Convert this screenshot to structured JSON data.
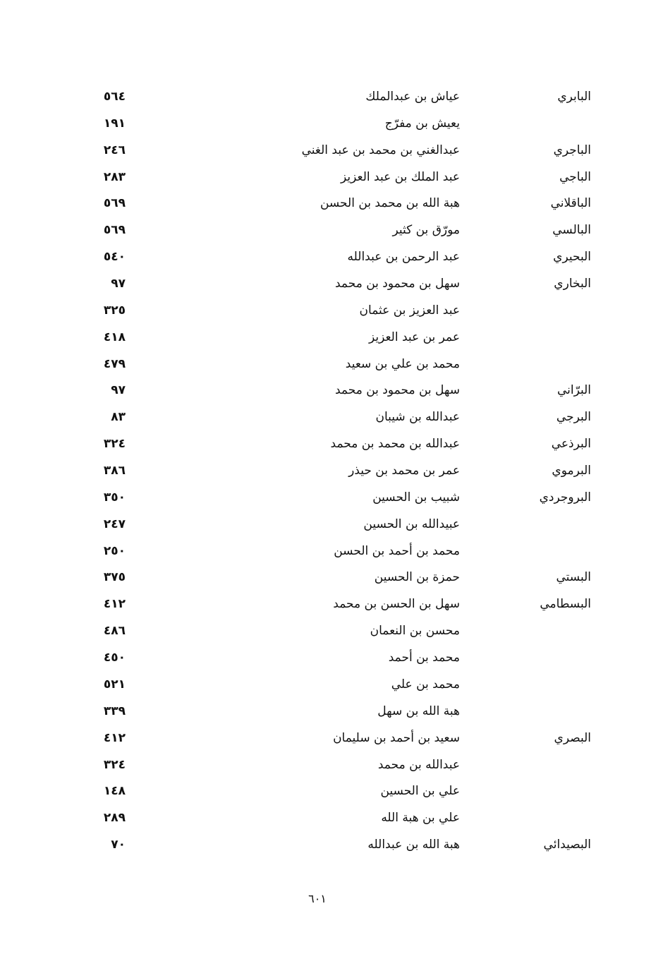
{
  "entries": [
    {
      "nisba": "البابري",
      "name": "عياش بن عبدالملك",
      "page": "٥٦٤"
    },
    {
      "nisba": "",
      "name": "يعيش بن مفرّج",
      "page": "١٩١"
    },
    {
      "nisba": "الباجري",
      "name": "عبدالغني بن محمد بن عبد الغني",
      "page": "٢٤٦"
    },
    {
      "nisba": "الباجي",
      "name": "عبد الملك بن عبد العزيز",
      "page": "٢٨٣"
    },
    {
      "nisba": "الباقلاني",
      "name": "هبة الله بن محمد بن الحسن",
      "page": "٥٦٩"
    },
    {
      "nisba": "البالسي",
      "name": "مورّق بن كثير",
      "page": "٥٦٩"
    },
    {
      "nisba": "البحيري",
      "name": "عبد الرحمن بن عبدالله",
      "page": "٥٤٠"
    },
    {
      "nisba": "البخاري",
      "name": "سهل بن محمود بن محمد",
      "page": "٩٧"
    },
    {
      "nisba": "",
      "name": "عبد العزيز بن عثمان",
      "page": "٣٢٥"
    },
    {
      "nisba": "",
      "name": "عمر بن عبد العزيز",
      "page": "٤١٨"
    },
    {
      "nisba": "",
      "name": "محمد بن علي بن سعيد",
      "page": "٤٧٩"
    },
    {
      "nisba": "البرّاني",
      "name": "سهل بن محمود بن محمد",
      "page": "٩٧"
    },
    {
      "nisba": "البرجي",
      "name": "عبدالله بن شيبان",
      "page": "٨٣"
    },
    {
      "nisba": "البرذعي",
      "name": "عبدالله بن محمد بن محمد",
      "page": "٣٢٤"
    },
    {
      "nisba": "البرموي",
      "name": "عمر بن محمد بن حيذر",
      "page": "٣٨٦"
    },
    {
      "nisba": "البروجردي",
      "name": "شبيب بن الحسين",
      "page": "٣٥٠"
    },
    {
      "nisba": "",
      "name": "عبيدالله بن الحسين",
      "page": "٢٤٧"
    },
    {
      "nisba": "",
      "name": "محمد بن أحمد بن الحسن",
      "page": "٢٥٠"
    },
    {
      "nisba": "البستي",
      "name": "حمزة بن الحسين",
      "page": "٣٧٥"
    },
    {
      "nisba": "البسطامي",
      "name": "سهل بن الحسن بن محمد",
      "page": "٤١٢"
    },
    {
      "nisba": "",
      "name": "محسن بن النعمان",
      "page": "٤٨٦"
    },
    {
      "nisba": "",
      "name": "محمد بن أحمد",
      "page": "٤٥٠"
    },
    {
      "nisba": "",
      "name": "محمد بن علي",
      "page": "٥٢١"
    },
    {
      "nisba": "",
      "name": "هبة الله بن سهل",
      "page": "٣٣٩"
    },
    {
      "nisba": "البصري",
      "name": "سعيد بن أحمد بن سليمان",
      "page": "٤١٢"
    },
    {
      "nisba": "",
      "name": "عبدالله بن محمد",
      "page": "٣٢٤"
    },
    {
      "nisba": "",
      "name": "علي بن الحسين",
      "page": "١٤٨"
    },
    {
      "nisba": "",
      "name": "علي بن هبة الله",
      "page": "٢٨٩"
    },
    {
      "nisba": "البصيدائي",
      "name": "هبة الله بن عبدالله",
      "page": "٧٠"
    }
  ],
  "footer": {
    "page_number": "٦٠١"
  }
}
